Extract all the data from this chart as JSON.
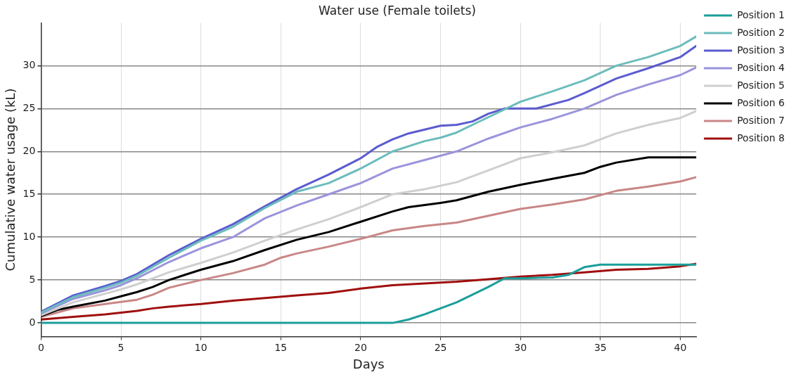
{
  "chart_data": {
    "type": "line",
    "title": "Water use (Female toilets)",
    "xlabel": "Days",
    "ylabel": "Cumulative water usage (kL)",
    "xlim": [
      0,
      41
    ],
    "ylim": [
      -1.6,
      35
    ],
    "xticks": [
      0,
      5,
      10,
      15,
      20,
      25,
      30,
      35,
      40
    ],
    "yticks": [
      0,
      5,
      10,
      15,
      20,
      25,
      30
    ],
    "grid": true,
    "legend": "right",
    "marker": "none",
    "line_style": "solid",
    "series": [
      {
        "name": "Position 1",
        "color": "#1a9e9a",
        "x": [
          0,
          5,
          10,
          15,
          20,
          22,
          23,
          24,
          25,
          26,
          27,
          28,
          29,
          30,
          32,
          33,
          34,
          35,
          38,
          41
        ],
        "values": [
          0,
          0,
          0,
          0,
          0,
          0,
          0.4,
          1.0,
          1.7,
          2.4,
          3.3,
          4.2,
          5.2,
          5.2,
          5.3,
          5.6,
          6.5,
          6.8,
          6.8,
          6.8
        ]
      },
      {
        "name": "Position 2",
        "color": "#6cbcbc",
        "x": [
          0,
          2,
          4,
          5,
          6,
          8,
          10,
          12,
          14,
          16,
          18,
          20,
          22,
          24,
          25,
          26,
          28,
          30,
          32,
          34,
          36,
          38,
          40,
          41
        ],
        "values": [
          1.2,
          3.0,
          4.1,
          4.7,
          5.5,
          7.6,
          9.6,
          11.2,
          13.4,
          15.3,
          16.3,
          18.0,
          20.0,
          21.2,
          21.6,
          22.2,
          24.0,
          25.8,
          27.0,
          28.3,
          30.0,
          31.0,
          32.3,
          33.4
        ]
      },
      {
        "name": "Position 3",
        "color": "#5b5bd0",
        "x": [
          0,
          2,
          4,
          5,
          6,
          8,
          10,
          12,
          14,
          16,
          18,
          20,
          21,
          22,
          23,
          25,
          26,
          27,
          28,
          29,
          31,
          33,
          34,
          36,
          38,
          40,
          41
        ],
        "values": [
          1.3,
          3.2,
          4.3,
          4.9,
          5.7,
          7.9,
          9.8,
          11.5,
          13.6,
          15.6,
          17.3,
          19.2,
          20.5,
          21.4,
          22.1,
          23.0,
          23.1,
          23.5,
          24.4,
          25.0,
          25.0,
          26.0,
          26.8,
          28.5,
          29.7,
          31.0,
          32.3
        ]
      },
      {
        "name": "Position 4",
        "color": "#9a94dc",
        "x": [
          0,
          2,
          4,
          5,
          6,
          8,
          10,
          12,
          14,
          16,
          18,
          20,
          22,
          24,
          26,
          28,
          30,
          32,
          34,
          36,
          38,
          40,
          41
        ],
        "values": [
          1.1,
          2.8,
          3.8,
          4.4,
          5.2,
          7.1,
          8.7,
          10.0,
          12.2,
          13.7,
          15.0,
          16.3,
          18.0,
          19.0,
          20.0,
          21.5,
          22.8,
          23.8,
          25.0,
          26.6,
          27.8,
          28.9,
          29.8
        ]
      },
      {
        "name": "Position 5",
        "color": "#cfcfcf",
        "x": [
          0,
          2,
          4,
          5,
          6,
          8,
          10,
          12,
          14,
          16,
          18,
          20,
          22,
          24,
          26,
          28,
          30,
          32,
          34,
          36,
          38,
          40,
          41
        ],
        "values": [
          0.9,
          2.4,
          3.4,
          3.9,
          4.5,
          5.9,
          7.0,
          8.2,
          9.6,
          10.9,
          12.1,
          13.5,
          15.0,
          15.6,
          16.4,
          17.8,
          19.2,
          19.9,
          20.7,
          22.1,
          23.1,
          23.9,
          24.7
        ]
      },
      {
        "name": "Position 6",
        "color": "#000000",
        "x": [
          0,
          1,
          2,
          4,
          5,
          6,
          7,
          8,
          10,
          12,
          14,
          16,
          18,
          20,
          22,
          23,
          25,
          26,
          28,
          30,
          32,
          34,
          35,
          36,
          38,
          41
        ],
        "values": [
          0.8,
          1.5,
          1.9,
          2.6,
          3.1,
          3.6,
          4.2,
          5.0,
          6.2,
          7.2,
          8.5,
          9.7,
          10.6,
          11.8,
          13.0,
          13.5,
          14.0,
          14.3,
          15.3,
          16.1,
          16.8,
          17.5,
          18.2,
          18.7,
          19.3,
          19.3
        ]
      },
      {
        "name": "Position 7",
        "color": "#c98686",
        "x": [
          0,
          2,
          4,
          6,
          7,
          8,
          10,
          12,
          14,
          15,
          16,
          18,
          20,
          22,
          24,
          26,
          28,
          30,
          32,
          34,
          36,
          38,
          40,
          41
        ],
        "values": [
          0.7,
          1.7,
          2.2,
          2.7,
          3.3,
          4.1,
          5.0,
          5.8,
          6.8,
          7.6,
          8.1,
          8.9,
          9.8,
          10.8,
          11.3,
          11.7,
          12.5,
          13.3,
          13.8,
          14.4,
          15.4,
          15.9,
          16.5,
          17.0
        ]
      },
      {
        "name": "Position 8",
        "color": "#a00e0e",
        "x": [
          0,
          2,
          4,
          6,
          7,
          8,
          10,
          12,
          14,
          16,
          18,
          20,
          22,
          24,
          26,
          28,
          30,
          32,
          34,
          36,
          38,
          40,
          41
        ],
        "values": [
          0.4,
          0.7,
          1.0,
          1.4,
          1.7,
          1.9,
          2.2,
          2.6,
          2.9,
          3.2,
          3.5,
          4.0,
          4.4,
          4.6,
          4.8,
          5.1,
          5.4,
          5.6,
          5.9,
          6.2,
          6.3,
          6.6,
          6.9
        ]
      }
    ]
  }
}
